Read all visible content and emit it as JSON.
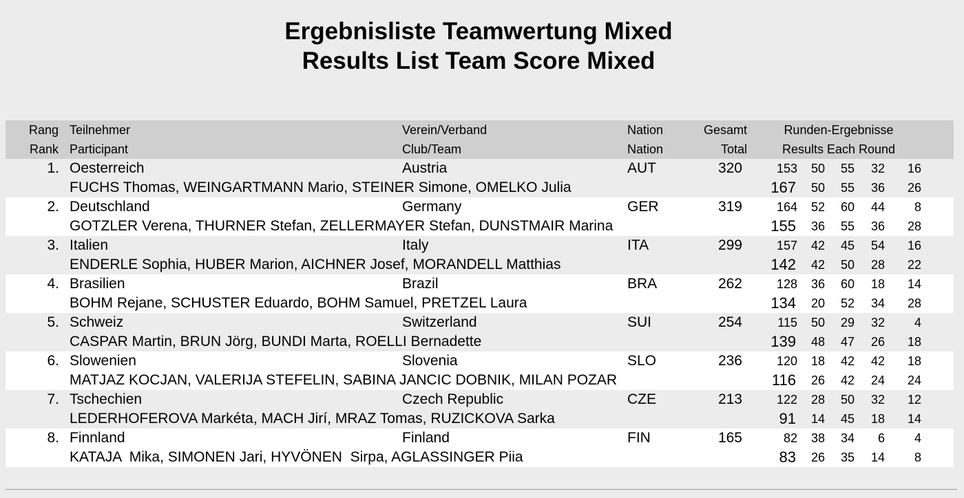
{
  "title": {
    "de": "Ergebnisliste Teamwertung Mixed",
    "en": "Results List Team Score Mixed"
  },
  "headers": {
    "rank_de": "Rang",
    "rank_en": "Rank",
    "participant_de": "Teilnehmer",
    "participant_en": "Participant",
    "club_de": "Verein/Verband",
    "club_en": "Club/Team",
    "nation_de": "Nation",
    "nation_en": "Nation",
    "total_de": "Gesamt",
    "total_en": "Total",
    "rounds_de": "Runden-Ergebnisse",
    "rounds_en": "Results Each Round"
  },
  "teams": [
    {
      "rank": "1.",
      "team": "Oesterreich",
      "club": "Austria",
      "nation": "AUT",
      "total": "320",
      "members": "FUCHS Thomas, WEINGARTMANN Mario, STEINER Simone, OMELKO Julia",
      "row1": [
        "153",
        "50",
        "55",
        "32",
        "16"
      ],
      "row2": [
        "167",
        "50",
        "55",
        "36",
        "26"
      ]
    },
    {
      "rank": "2.",
      "team": "Deutschland",
      "club": "Germany",
      "nation": "GER",
      "total": "319",
      "members": "GOTZLER Verena, THURNER Stefan, ZELLERMAYER Stefan, DUNSTMAIR Marina",
      "row1": [
        "164",
        "52",
        "60",
        "44",
        "8"
      ],
      "row2": [
        "155",
        "36",
        "55",
        "36",
        "28"
      ]
    },
    {
      "rank": "3.",
      "team": "Italien",
      "club": "Italy",
      "nation": "ITA",
      "total": "299",
      "members": "ENDERLE Sophia, HUBER Marion, AICHNER Josef, MORANDELL Matthias",
      "row1": [
        "157",
        "42",
        "45",
        "54",
        "16"
      ],
      "row2": [
        "142",
        "42",
        "50",
        "28",
        "22"
      ]
    },
    {
      "rank": "4.",
      "team": "Brasilien",
      "club": "Brazil",
      "nation": "BRA",
      "total": "262",
      "members": "BOHM Rejane, SCHUSTER Eduardo, BOHM Samuel, PRETZEL Laura",
      "row1": [
        "128",
        "36",
        "60",
        "18",
        "14"
      ],
      "row2": [
        "134",
        "20",
        "52",
        "34",
        "28"
      ]
    },
    {
      "rank": "5.",
      "team": "Schweiz",
      "club": "Switzerland",
      "nation": "SUI",
      "total": "254",
      "members": "CASPAR Martin, BRUN Jörg, BUNDI Marta, ROELLI Bernadette",
      "row1": [
        "115",
        "50",
        "29",
        "32",
        "4"
      ],
      "row2": [
        "139",
        "48",
        "47",
        "26",
        "18"
      ]
    },
    {
      "rank": "6.",
      "team": "Slowenien",
      "club": "Slovenia",
      "nation": "SLO",
      "total": "236",
      "members": "MATJAZ KOCJAN, VALERIJA STEFELIN, SABINA JANCIC DOBNIK, MILAN POZAR",
      "row1": [
        "120",
        "18",
        "42",
        "42",
        "18"
      ],
      "row2": [
        "116",
        "26",
        "42",
        "24",
        "24"
      ]
    },
    {
      "rank": "7.",
      "team": "Tschechien",
      "club": "Czech Republic",
      "nation": "CZE",
      "total": "213",
      "members": "LEDERHOFEROVA Markéta, MACH Jirí, MRAZ Tomas, RUZICKOVA Sarka",
      "row1": [
        "122",
        "28",
        "50",
        "32",
        "12"
      ],
      "row2": [
        "91",
        "14",
        "45",
        "18",
        "14"
      ]
    },
    {
      "rank": "8.",
      "team": "Finnland",
      "club": "Finland",
      "nation": "FIN",
      "total": "165",
      "members": "KATAJA  Mika, SIMONEN Jari, HYVÖNEN  Sirpa, AGLASSINGER Piia",
      "row1": [
        "82",
        "38",
        "34",
        "6",
        "4"
      ],
      "row2": [
        "83",
        "26",
        "35",
        "14",
        "8"
      ]
    }
  ]
}
